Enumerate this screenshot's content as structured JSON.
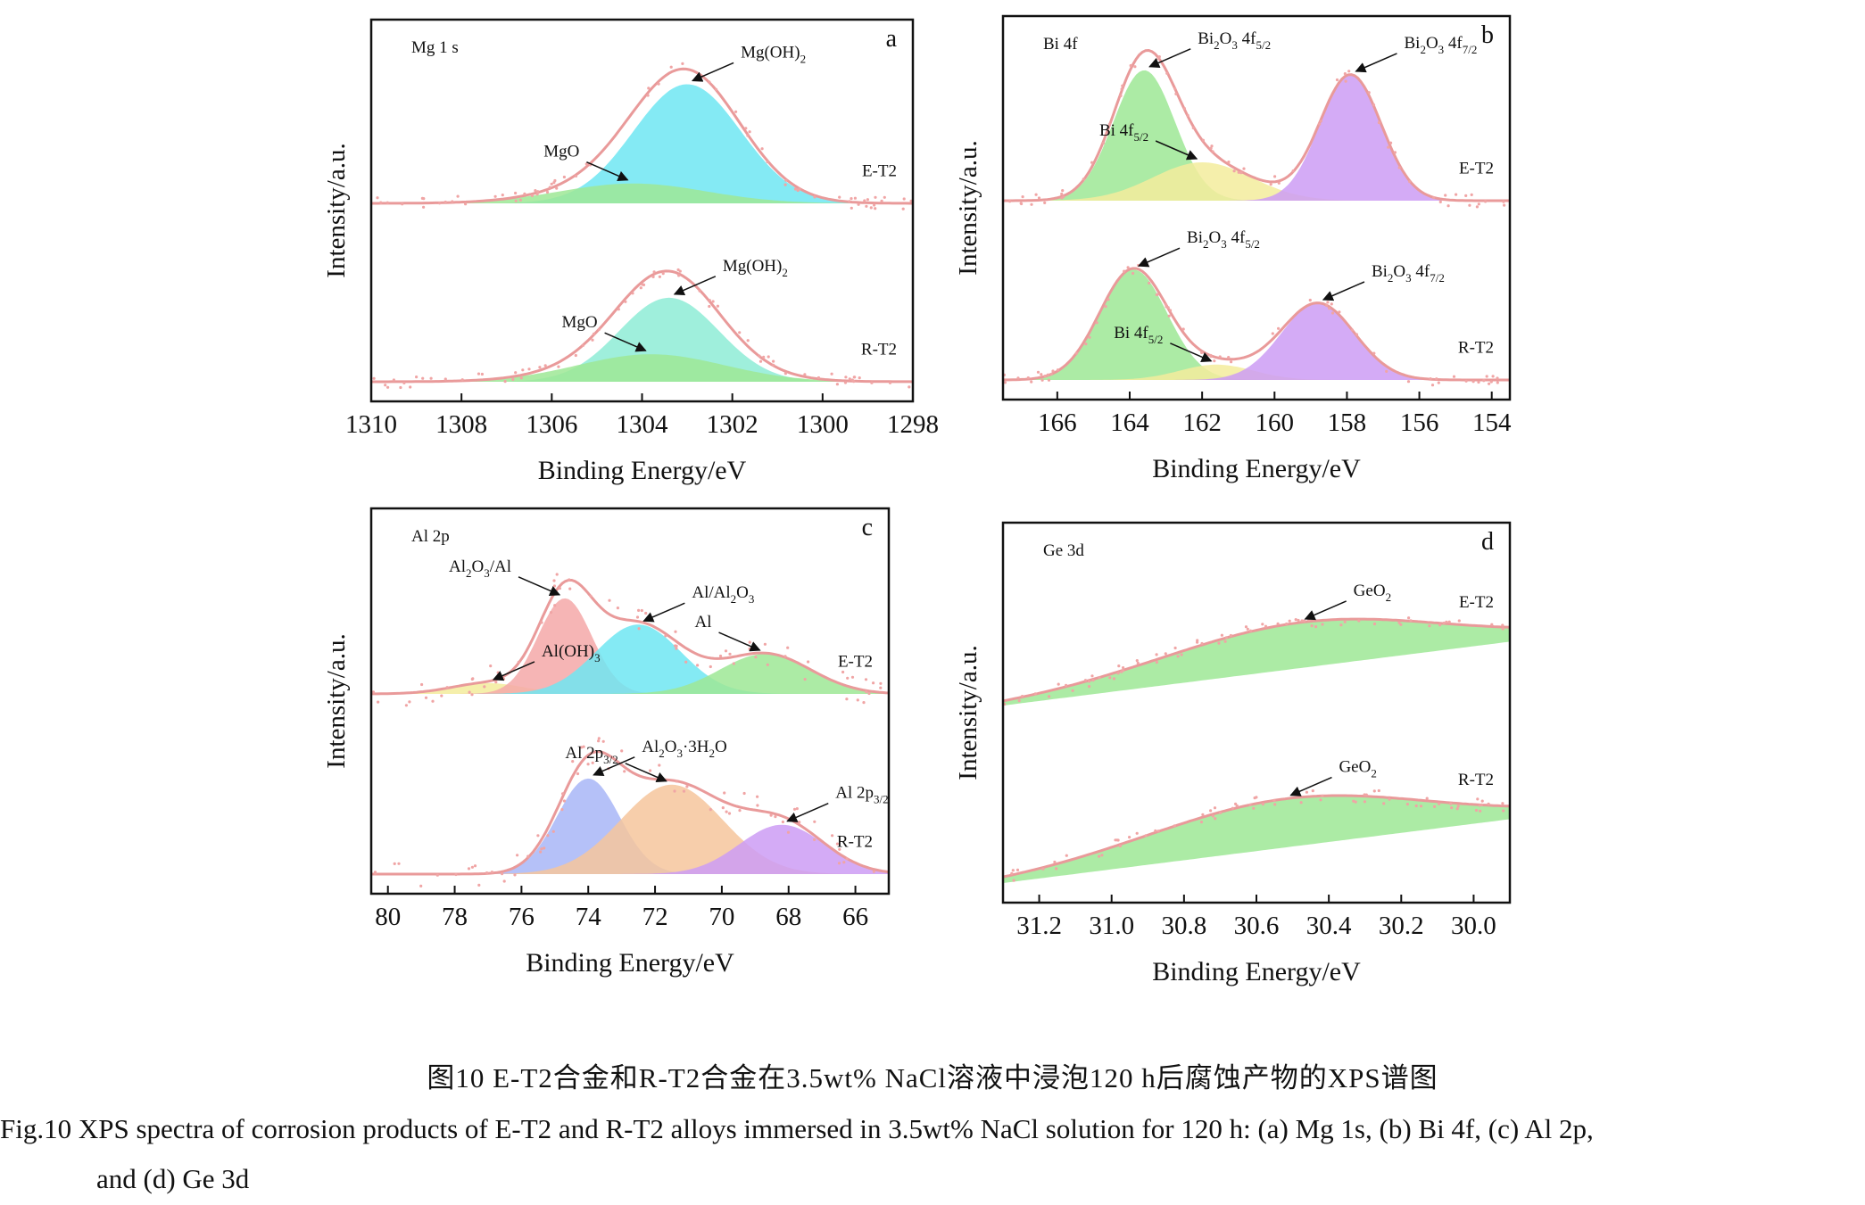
{
  "colors": {
    "envelope": "#e99a9a",
    "scatter": "#f0a5a5",
    "axis": "#111111",
    "cyan": "#6ee6f2",
    "green": "#9ee895",
    "mint": "#8eecd6",
    "yellow": "#f3ec9c",
    "purple": "#cc9cf5",
    "salmon": "#f4a8a8",
    "blue": "#a8b6f7",
    "peach": "#f6c59c"
  },
  "chart_data": [
    {
      "panel": "a",
      "type": "area",
      "element": "Mg 1 s",
      "xlabel": "Binding Energy/eV",
      "ylabel": "Intensity/a.u.",
      "xlim": [
        1310,
        1298
      ],
      "xticks": [
        1310,
        1308,
        1306,
        1304,
        1302,
        1300,
        1298
      ],
      "grid": false,
      "series": [
        {
          "name": "E-T2",
          "offset": 1.0,
          "components": [
            {
              "name": "Mg(OH)2",
              "center": 1303.0,
              "height": 0.78,
              "fwhm": 2.8,
              "color": "cyan",
              "label": "Mg(OH)",
              "sub": "2"
            },
            {
              "name": "MgO",
              "center": 1304.2,
              "height": 0.13,
              "fwhm": 3.8,
              "color": "green",
              "label": "MgO",
              "sub": ""
            }
          ]
        },
        {
          "name": "R-T2",
          "offset": 0.0,
          "components": [
            {
              "name": "Mg(OH)2",
              "center": 1303.4,
              "height": 0.55,
              "fwhm": 2.6,
              "color": "mint",
              "label": "Mg(OH)",
              "sub": "2"
            },
            {
              "name": "MgO",
              "center": 1303.8,
              "height": 0.18,
              "fwhm": 3.8,
              "color": "green",
              "label": "MgO",
              "sub": ""
            }
          ]
        }
      ]
    },
    {
      "panel": "b",
      "type": "area",
      "element": "Bi 4f",
      "xlabel": "Binding Energy/eV",
      "ylabel": "Intensity/a.u.",
      "xlim": [
        167.5,
        153.5
      ],
      "xticks": [
        166,
        164,
        162,
        160,
        158,
        156,
        154
      ],
      "grid": false,
      "series": [
        {
          "name": "E-T2",
          "offset": 1.0,
          "components": [
            {
              "name": "Bi2O3 4f5/2",
              "center": 163.6,
              "height": 0.85,
              "fwhm": 2.0,
              "color": "green",
              "label": "Bi",
              "sub": "2",
              "mid": "O",
              "sub2": "3",
              "tail": " 4f",
              "sub3": "5/2"
            },
            {
              "name": "Bi 4f5/2",
              "center": 162.0,
              "height": 0.25,
              "fwhm": 3.2,
              "color": "yellow",
              "label": "Bi 4f",
              "sub": "5/2"
            },
            {
              "name": "Bi2O3 4f7/2",
              "center": 157.9,
              "height": 0.82,
              "fwhm": 2.0,
              "color": "purple",
              "label": "Bi",
              "sub": "2",
              "mid": "O",
              "sub2": "3",
              "tail": " 4f",
              "sub3": "7/2"
            }
          ]
        },
        {
          "name": "R-T2",
          "offset": 0.0,
          "components": [
            {
              "name": "Bi2O3 4f5/2",
              "center": 163.9,
              "height": 0.72,
              "fwhm": 2.2,
              "color": "green",
              "label": "Bi",
              "sub": "2",
              "mid": "O",
              "sub2": "3",
              "tail": " 4f",
              "sub3": "5/2"
            },
            {
              "name": "Bi 4f5/2",
              "center": 161.6,
              "height": 0.1,
              "fwhm": 2.4,
              "color": "yellow",
              "label": "Bi 4f",
              "sub": "5/2"
            },
            {
              "name": "Bi2O3 4f7/2",
              "center": 158.8,
              "height": 0.5,
              "fwhm": 2.4,
              "color": "purple",
              "label": "Bi",
              "sub": "2",
              "mid": "O",
              "sub2": "3",
              "tail": " 4f",
              "sub3": "7/2"
            }
          ]
        }
      ]
    },
    {
      "panel": "c",
      "type": "area",
      "element": "Al 2p",
      "xlabel": "Binding Energy/eV",
      "ylabel": "Intensity/a.u.",
      "xlim": [
        80.5,
        65.0
      ],
      "xticks": [
        80,
        78,
        76,
        74,
        72,
        70,
        68,
        66
      ],
      "grid": false,
      "series": [
        {
          "name": "E-T2",
          "offset": 1.0,
          "components": [
            {
              "name": "Al(OH)3",
              "center": 77.0,
              "height": 0.07,
              "fwhm": 2.6,
              "color": "yellow",
              "label": "Al(OH)",
              "sub": "3"
            },
            {
              "name": "Al2O3/Al",
              "center": 74.7,
              "height": 0.62,
              "fwhm": 1.9,
              "color": "salmon",
              "label": "Al",
              "sub": "2",
              "mid": "O",
              "sub2": "3",
              "tail": "/Al"
            },
            {
              "name": "Al/Al2O3",
              "center": 72.5,
              "height": 0.45,
              "fwhm": 3.0,
              "color": "cyan",
              "label": "Al/Al",
              "sub": "2",
              "mid": "O",
              "sub2": "3"
            },
            {
              "name": "Al",
              "center": 68.7,
              "height": 0.26,
              "fwhm": 3.2,
              "color": "green",
              "label": "Al",
              "sub": ""
            }
          ]
        },
        {
          "name": "R-T2",
          "offset": 0.0,
          "components": [
            {
              "name": "Al2O3·3H2O",
              "center": 74.0,
              "height": 0.62,
              "fwhm": 2.2,
              "color": "blue",
              "label": "Al",
              "sub": "2",
              "mid": "O",
              "sub2": "3",
              "tail": "·3H",
              "sub3": "2",
              "tail2": "O"
            },
            {
              "name": "Al 2p3/2",
              "center": 71.5,
              "height": 0.58,
              "fwhm": 3.6,
              "color": "peach",
              "label": "Al 2p",
              "sub": "3/2"
            },
            {
              "name": "Al 2p3/2",
              "center": 68.2,
              "height": 0.32,
              "fwhm": 3.0,
              "color": "purple",
              "label": "Al 2p",
              "sub": "3/2"
            }
          ]
        }
      ]
    },
    {
      "panel": "d",
      "type": "area",
      "element": "Ge 3d",
      "xlabel": "Binding Energy/eV",
      "ylabel": "Intensity/a.u.",
      "xlim": [
        31.3,
        29.9
      ],
      "xticks": [
        31.2,
        31.0,
        30.8,
        30.6,
        30.4,
        30.2,
        30.0
      ],
      "xtick_labels": [
        "31.2",
        "31.0",
        "30.8",
        "30.6",
        "30.4",
        "30.2",
        "30.0"
      ],
      "grid": false,
      "series": [
        {
          "name": "E-T2",
          "offset": 1.0,
          "components": [
            {
              "name": "GeO2",
              "center": 30.48,
              "height": 0.3,
              "fwhm": 0.9,
              "color": "green",
              "label": "GeO",
              "sub": "2"
            }
          ]
        },
        {
          "name": "R-T2",
          "offset": 0.0,
          "components": [
            {
              "name": "GeO2",
              "center": 30.52,
              "height": 0.32,
              "fwhm": 0.9,
              "color": "green",
              "label": "GeO",
              "sub": "2"
            }
          ]
        }
      ]
    }
  ],
  "caption": {
    "cn": "图10  E-T2合金和R-T2合金在3.5wt% NaCl溶液中浸泡120 h后腐蚀产物的XPS谱图",
    "en_line1": "Fig.10  XPS spectra of corrosion products of E-T2 and R-T2 alloys immersed in 3.5wt% NaCl solution for 120 h: (a) Mg 1s, (b) Bi 4f, (c) Al 2p,",
    "en_line2": "and (d) Ge 3d"
  }
}
